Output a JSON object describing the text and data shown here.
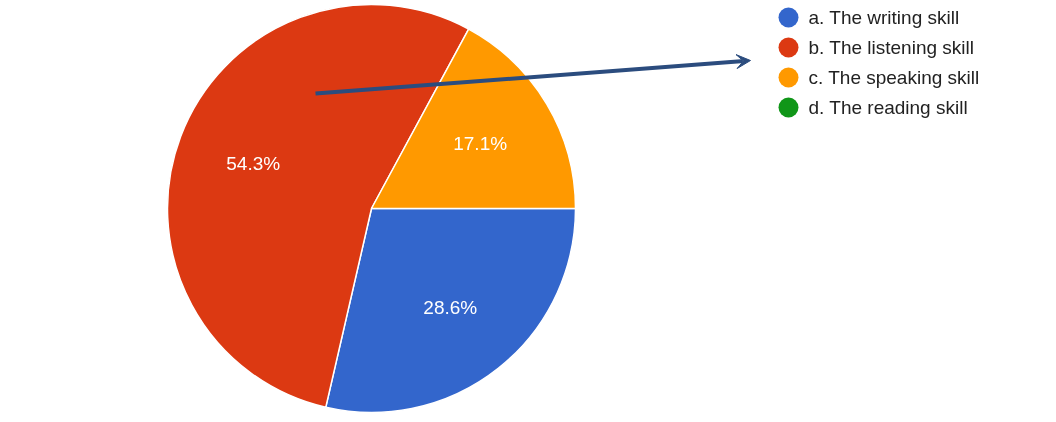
{
  "chart_data": {
    "type": "pie",
    "categories": [
      "a. The writing skill",
      "b. The listening skill",
      "c. The speaking skill",
      "d. The reading skill"
    ],
    "values": [
      28.6,
      54.3,
      17.1,
      0
    ],
    "colors": [
      "#3366cc",
      "#dc3912",
      "#ff9900",
      "#109618"
    ],
    "value_labels": [
      "28.6%",
      "54.3%",
      "17.1%",
      null
    ],
    "legend": "right"
  }
}
